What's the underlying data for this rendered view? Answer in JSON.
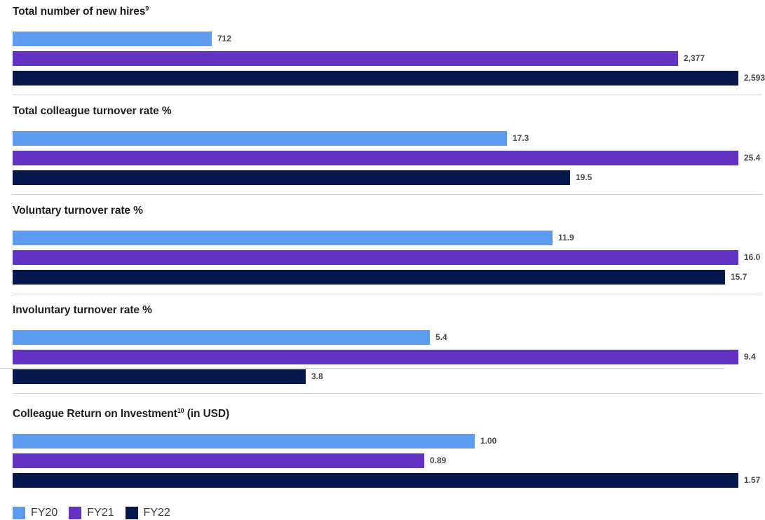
{
  "chart_data": [
    {
      "type": "bar",
      "orientation": "horizontal",
      "title": "Total number of new hires",
      "title_footnote": "9",
      "title_suffix": "",
      "categories": [
        "FY20",
        "FY21",
        "FY22"
      ],
      "values": [
        712,
        2377,
        2593
      ],
      "labels": [
        "712",
        "2,377",
        "2,593"
      ]
    },
    {
      "type": "bar",
      "orientation": "horizontal",
      "title": "Total colleague turnover rate %",
      "title_footnote": "",
      "title_suffix": "",
      "categories": [
        "FY20",
        "FY21",
        "FY22"
      ],
      "values": [
        17.3,
        25.4,
        19.5
      ],
      "labels": [
        "17.3",
        "25.4",
        "19.5"
      ]
    },
    {
      "type": "bar",
      "orientation": "horizontal",
      "title": "Voluntary turnover rate %",
      "title_footnote": "",
      "title_suffix": "",
      "categories": [
        "FY20",
        "FY21",
        "FY22"
      ],
      "values": [
        11.9,
        16.0,
        15.7
      ],
      "labels": [
        "11.9",
        "16.0",
        "15.7"
      ]
    },
    {
      "type": "bar",
      "orientation": "horizontal",
      "title": "Involuntary turnover rate %",
      "title_footnote": "",
      "title_suffix": "",
      "categories": [
        "FY20",
        "FY21",
        "FY22"
      ],
      "values": [
        5.4,
        9.4,
        3.8
      ],
      "labels": [
        "5.4",
        "9.4",
        "3.8"
      ]
    },
    {
      "type": "bar",
      "orientation": "horizontal",
      "title": "Colleague Return on Investment",
      "title_footnote": "10",
      "title_suffix": " (in USD)",
      "categories": [
        "FY20",
        "FY21",
        "FY22"
      ],
      "values": [
        1.0,
        0.89,
        1.57
      ],
      "labels": [
        "1.00",
        "0.89",
        "1.57"
      ]
    }
  ],
  "legend": [
    {
      "label": "FY20",
      "color": "#5b9bf0"
    },
    {
      "label": "FY21",
      "color": "#6232c2"
    },
    {
      "label": "FY22",
      "color": "#06174c"
    }
  ],
  "colors": {
    "FY20": "#5b9bf0",
    "FY21": "#6232c2",
    "FY22": "#06174c"
  }
}
